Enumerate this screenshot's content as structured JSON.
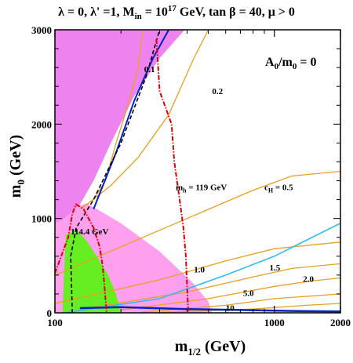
{
  "chart_data": {
    "type": "contour",
    "title": "λ = 0, λ' =1, M_in = 10^17 GeV, tan β = 40, μ > 0",
    "title_parts": {
      "main": "λ = 0, λ' =1, M",
      "in_sub": "in",
      "eq": " = 10",
      "exp": "17",
      "rest": " GeV, tan β = 40,  μ > 0"
    },
    "xlabel": "m",
    "xlabel_sub": "1/2",
    "xlabel_unit": " (GeV)",
    "ylabel": "m",
    "ylabel_sub": "0",
    "ylabel_unit": " (GeV)",
    "x_scale": "log",
    "xlim": [
      100,
      2000
    ],
    "ylim": [
      0,
      3000
    ],
    "x_ticks": [
      {
        "v": 100,
        "t": "100"
      },
      {
        "v": 1000,
        "t": "1000"
      },
      {
        "v": 2000,
        "t": "2000"
      }
    ],
    "y_ticks": [
      {
        "v": 0,
        "t": "0"
      },
      {
        "v": 1000,
        "t": "1000"
      },
      {
        "v": 2000,
        "t": "2000"
      },
      {
        "v": 3000,
        "t": "3000"
      }
    ],
    "annotation": {
      "main": "A",
      "sub": "0",
      "rest": "/m",
      "sub2": "0",
      "tail": " = 0"
    },
    "colors": {
      "magenta_region": "#ee82ee",
      "pink_region": "#ffa0ee",
      "green_region": "#66ee22",
      "orange_contour": "#e8a020",
      "red_dotdash": "#dd0000",
      "blue_band": "#0022cc",
      "cyan_line": "#33bbee",
      "black_dash": "#000000"
    },
    "regions": {
      "magenta_stau": [
        [
          100,
          3000
        ],
        [
          390,
          3000
        ],
        [
          300,
          2700
        ],
        [
          230,
          2300
        ],
        [
          180,
          1800
        ],
        [
          150,
          1400
        ],
        [
          130,
          1150
        ],
        [
          110,
          1000
        ],
        [
          100,
          950
        ]
      ],
      "pink_gminus2": [
        [
          100,
          1060
        ],
        [
          140,
          1160
        ],
        [
          200,
          950
        ],
        [
          300,
          650
        ],
        [
          420,
          330
        ],
        [
          500,
          120
        ],
        [
          520,
          0
        ],
        [
          100,
          0
        ]
      ],
      "green_bsg": [
        [
          108,
          0
        ],
        [
          112,
          820
        ],
        [
          125,
          880
        ],
        [
          140,
          760
        ],
        [
          155,
          600
        ],
        [
          175,
          400
        ],
        [
          190,
          200
        ],
        [
          200,
          0
        ]
      ]
    },
    "ch_contours": [
      {
        "label": "0.1",
        "points": [
          [
            250,
            3000
          ],
          [
            240,
            2600
          ],
          [
            215,
            2200
          ],
          [
            190,
            1800
          ],
          [
            170,
            1400
          ],
          [
            150,
            1200
          ],
          [
            130,
            1100
          ]
        ]
      },
      {
        "label": "0.2",
        "points": [
          [
            500,
            3000
          ],
          [
            430,
            2700
          ],
          [
            330,
            2100
          ],
          [
            240,
            1650
          ],
          [
            180,
            1350
          ],
          [
            140,
            1150
          ]
        ]
      },
      {
        "label": "0.5",
        "points": [
          [
            100,
            400
          ],
          [
            200,
            700
          ],
          [
            400,
            1000
          ],
          [
            800,
            1300
          ],
          [
            1200,
            1450
          ],
          [
            2000,
            1500
          ]
        ]
      },
      {
        "label": "1.0",
        "points": [
          [
            100,
            100
          ],
          [
            300,
            350
          ],
          [
            600,
            550
          ],
          [
            1000,
            680
          ],
          [
            2000,
            750
          ]
        ]
      },
      {
        "label": "1.5",
        "points": [
          [
            150,
            60
          ],
          [
            400,
            220
          ],
          [
            800,
            380
          ],
          [
            1200,
            470
          ],
          [
            2000,
            520
          ]
        ]
      },
      {
        "label": "2.0",
        "points": [
          [
            200,
            30
          ],
          [
            500,
            150
          ],
          [
            1000,
            280
          ],
          [
            1500,
            340
          ],
          [
            2000,
            370
          ]
        ]
      },
      {
        "label": "5.0",
        "points": [
          [
            250,
            10
          ],
          [
            600,
            80
          ],
          [
            1000,
            150
          ],
          [
            2000,
            200
          ]
        ]
      },
      {
        "label": "10",
        "points": [
          [
            300,
            5
          ],
          [
            800,
            40
          ],
          [
            1400,
            80
          ],
          [
            2000,
            100
          ]
        ]
      }
    ],
    "higgs_contours": [
      {
        "label": "m_h = 119 GeV",
        "label_main": "m",
        "label_sub": "h",
        "label_rest": " = 119 GeV",
        "points": [
          [
            290,
            2900
          ],
          [
            300,
            2350
          ],
          [
            340,
            2000
          ],
          [
            350,
            1600
          ],
          [
            370,
            1200
          ],
          [
            385,
            900
          ],
          [
            395,
            600
          ],
          [
            400,
            300
          ],
          [
            405,
            0
          ]
        ]
      },
      {
        "label": "114.4 GeV",
        "label_main": "114.4 GeV",
        "points": [
          [
            100,
            420
          ],
          [
            115,
            800
          ],
          [
            120,
            1050
          ],
          [
            125,
            1150
          ],
          [
            135,
            1100
          ],
          [
            150,
            900
          ],
          [
            160,
            700
          ],
          [
            165,
            500
          ],
          [
            168,
            300
          ],
          [
            172,
            0
          ]
        ]
      }
    ],
    "blue_band": [
      [
        150,
        1100
      ],
      [
        190,
        1700
      ],
      [
        230,
        2250
      ],
      [
        280,
        2700
      ],
      [
        330,
        3000
      ]
    ],
    "blue_lower": [
      [
        130,
        50
      ],
      [
        200,
        60
      ],
      [
        400,
        40
      ],
      [
        700,
        30
      ],
      [
        1200,
        20
      ],
      [
        2000,
        15
      ]
    ],
    "cyan_line": [
      [
        110,
        0
      ],
      [
        300,
        150
      ],
      [
        600,
        400
      ],
      [
        1000,
        600
      ],
      [
        2000,
        950
      ]
    ],
    "black_dash": [
      [
        120,
        0
      ],
      [
        118,
        600
      ],
      [
        125,
        900
      ],
      [
        150,
        1200
      ],
      [
        200,
        1800
      ],
      [
        260,
        2500
      ],
      [
        300,
        3000
      ]
    ]
  }
}
